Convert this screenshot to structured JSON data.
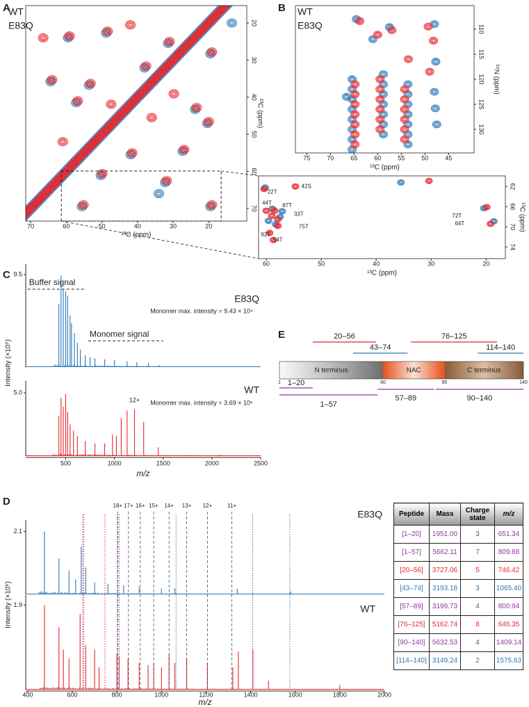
{
  "panel_labels": [
    "A",
    "B",
    "C",
    "D",
    "E"
  ],
  "chart_data": [
    {
      "type": "contour",
      "xlabel": "¹³C (ppm)",
      "ylabel": "¹³C (ppm)",
      "xlim": [
        71.4,
        9.3
      ],
      "ylim": [
        73.4,
        15.3
      ],
      "xticks": [
        70,
        60,
        50,
        40,
        30,
        20
      ],
      "yticks": [
        20,
        30,
        40,
        50,
        60,
        70
      ],
      "diagonal": true,
      "series": [
        {
          "name": "WT",
          "color": "#e8262a",
          "x": [
            59.1,
            48.4,
            37.6,
            31.0,
            53.2,
            64.0,
            56.8,
            47.4,
            23.4,
            19.1,
            26.9,
            41.5,
            49.9,
            31.8,
            19.1,
            55.2,
            29.8,
            20.0,
            66.5,
            42.0,
            61.0,
            36.0
          ],
          "values": [
            23.5,
            22.2,
            31.6,
            25.0,
            36.3,
            35.3,
            41.0,
            41.9,
            42.8,
            27.8,
            54.1,
            55.0,
            60.6,
            62.5,
            69.0,
            69.0,
            39.1,
            46.6,
            24.0,
            20.5,
            52.0,
            45.5
          ]
        },
        {
          "name": "E83Q",
          "color": "#2a78b8",
          "x": [
            59.5,
            48.8,
            38.0,
            31.4,
            53.6,
            64.4,
            57.2,
            23.8,
            19.5,
            27.3,
            41.9,
            50.3,
            32.2,
            19.5,
            55.6,
            20.4,
            13.5,
            34.0
          ],
          "values": [
            24.0,
            22.7,
            32.1,
            25.5,
            36.8,
            35.8,
            41.5,
            43.3,
            28.3,
            54.6,
            55.5,
            61.1,
            63.0,
            69.5,
            69.5,
            47.1,
            20.0,
            66.0
          ]
        }
      ]
    },
    {
      "type": "contour",
      "xlabel": "¹³C (ppm)",
      "ylabel": "¹³C (ppm)",
      "xlim": [
        61.4,
        16.5
      ],
      "ylim": [
        76.3,
        59.9
      ],
      "xticks": [
        60,
        50,
        40,
        30,
        20
      ],
      "yticks": [
        62,
        66,
        70,
        74
      ],
      "series": [
        {
          "name": "WT",
          "color": "#e8262a",
          "x": [
            60.4,
            54.7,
            58.5,
            60.0,
            57.9,
            57.9,
            59.4,
            58.7,
            19.9,
            19.2,
            30.4,
            59.0
          ],
          "values": [
            62.5,
            62.0,
            66.8,
            66.8,
            68.5,
            69.8,
            71.2,
            72.6,
            66.1,
            69.4,
            60.9,
            67.8
          ]
        },
        {
          "name": "E83Q",
          "color": "#2a78b8",
          "x": [
            60.2,
            58.9,
            57.5,
            59.6,
            58.3,
            20.4,
            18.6,
            57.1,
            35.5
          ],
          "values": [
            62.2,
            66.4,
            68.0,
            68.8,
            69.5,
            66.3,
            68.9,
            66.9,
            61.2
          ]
        }
      ],
      "annotations": [
        {
          "text": "22T",
          "x": 58.9,
          "y": 63.1
        },
        {
          "text": "42S",
          "x": 52.7,
          "y": 62.0
        },
        {
          "text": "44T",
          "x": 59.9,
          "y": 65.3
        },
        {
          "text": "87T",
          "x": 56.2,
          "y": 65.8
        },
        {
          "text": "33T",
          "x": 54.1,
          "y": 67.5
        },
        {
          "text": "75T",
          "x": 53.2,
          "y": 70.0
        },
        {
          "text": "92T",
          "x": 60.1,
          "y": 71.6
        },
        {
          "text": "54T",
          "x": 57.9,
          "y": 72.6
        },
        {
          "text": "72T",
          "x": 25.3,
          "y": 67.9
        },
        {
          "text": "64T",
          "x": 24.8,
          "y": 69.4
        }
      ]
    },
    {
      "type": "contour",
      "xlabel": "¹³C (ppm)",
      "ylabel": "¹⁵N (ppm)",
      "xlim": [
        77.4,
        39.6
      ],
      "ylim": [
        134.7,
        105.3
      ],
      "xticks": [
        75,
        70,
        65,
        60,
        55,
        50,
        45
      ],
      "yticks": [
        110,
        115,
        120,
        125,
        130
      ],
      "series": [
        {
          "name": "WT",
          "color": "#e8262a",
          "x": [
            64.8,
            64.8,
            64.8,
            64.8,
            64.8,
            64.8,
            64.8,
            59.5,
            59.5,
            59.5,
            59.5,
            59.5,
            59.5,
            54.3,
            54.3,
            54.3,
            54.3,
            54.3,
            54.3,
            63.8,
            60.0,
            57.0,
            49.3,
            48.2,
            49.0,
            53.5
          ],
          "values": [
            121,
            123,
            125,
            127,
            129,
            131,
            133,
            120,
            122,
            124,
            126,
            128,
            130,
            122,
            124,
            126,
            128,
            130,
            132,
            108.4,
            111.1,
            110.2,
            109.5,
            112.3,
            118.5,
            116.0
          ]
        },
        {
          "name": "E83Q",
          "color": "#2a78b8",
          "x": [
            65.4,
            65.4,
            65.4,
            65.4,
            65.4,
            65.4,
            65.4,
            65.4,
            58.8,
            58.8,
            58.8,
            58.8,
            58.8,
            58.8,
            58.8,
            53.6,
            53.6,
            53.6,
            53.6,
            53.6,
            53.6,
            53.6,
            64.5,
            61.0,
            57.5,
            48.0,
            47.7,
            48.0,
            47.8,
            66.6,
            47.5
          ],
          "values": [
            120,
            122,
            124,
            126,
            128,
            130,
            132,
            134,
            119,
            121,
            123,
            125,
            127,
            129,
            131,
            121,
            123,
            125,
            127,
            129,
            131,
            133,
            108.0,
            112.0,
            109.6,
            109.0,
            116.5,
            122.5,
            125.8,
            123.5,
            129.0
          ]
        }
      ]
    },
    {
      "type": "stick",
      "xlim": [
        90,
        2500
      ],
      "ylim": [
        0,
        10
      ],
      "yticks": [
        9.5
      ],
      "series": [
        {
          "name": "E83Q",
          "color": "#2a78b8",
          "x": [
            430,
            452,
            475,
            500,
            520,
            545,
            560,
            590,
            620,
            650,
            700,
            750,
            800,
            900,
            1000,
            1130,
            1230,
            1350,
            1460
          ],
          "values": [
            6.5,
            9.4,
            8.0,
            7.8,
            7.3,
            5.3,
            4.5,
            3.5,
            2.5,
            1.8,
            1.2,
            1.0,
            0.9,
            0.8,
            0.7,
            0.6,
            0.5,
            0.4,
            0.2
          ]
        }
      ],
      "annotations": [
        {
          "text": "Buffer signal",
          "x": [
            110,
            695
          ],
          "y": 8.0
        },
        {
          "text": "Monomer signal",
          "x": [
            732,
            1502
          ],
          "y": 2.7
        },
        {
          "text": "Monomer max. intensity = 9.43 × 10⁴",
          "x": 1894,
          "y": 5.7
        }
      ]
    },
    {
      "type": "stick",
      "xlabel": "m/z",
      "ylabel": "Intensity (×10⁵)",
      "xlim": [
        90,
        2500
      ],
      "ylim": [
        0,
        5.5
      ],
      "xticks": [
        500,
        1000,
        1500,
        2000,
        2500
      ],
      "yticks": [
        {
          "value": 5,
          "label": "5.0"
        }
      ],
      "series": [
        {
          "name": "WT",
          "color": "#e8262a",
          "x": [
            430,
            452,
            475,
            500,
            520,
            545,
            580,
            620,
            700,
            800,
            900,
            980,
            1020,
            1070,
            1130,
            1206,
            1300,
            1450,
            2080
          ],
          "values": [
            3.2,
            4.6,
            3.9,
            4.9,
            3.5,
            2.5,
            2.0,
            1.6,
            1.2,
            1.0,
            1.0,
            1.7,
            1.6,
            3.0,
            3.6,
            3.7,
            2.7,
            0.7,
            0.1
          ]
        }
      ],
      "annotations": [
        {
          "text": "Monomer max. intensity = 3.69 × 10⁵",
          "x": 1894,
          "y": 4.18
        },
        {
          "text": "12+",
          "x": 1206,
          "y": 4.4,
          "color": "#e8262a"
        }
      ]
    },
    {
      "type": "stick",
      "xlim": [
        391,
        2000
      ],
      "ylim": [
        0,
        2.3
      ],
      "yticks": [
        2.1
      ],
      "series": [
        {
          "name": "E83Q",
          "color": "#2a78b8",
          "x": [
            475,
            540,
            585,
            615,
            640,
            660,
            700,
            760,
            830,
            900,
            1000,
            1060,
            1340,
            1580
          ],
          "values": [
            2.1,
            1.2,
            0.8,
            0.5,
            1.6,
            0.9,
            0.4,
            0.35,
            0.3,
            0.25,
            0.2,
            0.2,
            0.2,
            0.1
          ]
        }
      ],
      "charge_states": [
        {
          "label": "18+",
          "x": 804
        },
        {
          "label": "17+",
          "x": 852
        },
        {
          "label": "16+",
          "x": 905
        },
        {
          "label": "15+",
          "x": 965
        },
        {
          "label": "14+",
          "x": 1034
        },
        {
          "label": "13+",
          "x": 1113
        },
        {
          "label": "12+",
          "x": 1206
        },
        {
          "label": "11+",
          "x": 1316
        }
      ],
      "reference_lines": [
        {
          "x": 646.35,
          "color": "#e8262a"
        },
        {
          "x": 651.34,
          "color": "#8b3a9a"
        },
        {
          "x": 746.42,
          "color": "#e8262a"
        },
        {
          "x": 800.94,
          "color": "#8b3a9a"
        },
        {
          "x": 809.88,
          "color": "#8b3a9a"
        },
        {
          "x": 1065.4,
          "color": "#2a78b8"
        },
        {
          "x": 1409.14,
          "color": "#8b3a9a"
        },
        {
          "x": 1575.63,
          "color": "#2a78b8"
        }
      ]
    },
    {
      "type": "stick",
      "xlabel": "m/z",
      "ylabel": "Intensity (×10⁶)",
      "xlim": [
        391,
        2000
      ],
      "ylim": [
        0,
        2.0
      ],
      "xticks": [
        400,
        600,
        800,
        1000,
        1200,
        1400,
        1600,
        1800,
        2000
      ],
      "yticks": [
        1.9
      ],
      "series": [
        {
          "name": "WT",
          "color": "#e8262a",
          "x": [
            475,
            540,
            560,
            585,
            635,
            660,
            700,
            720,
            800,
            810,
            850,
            900,
            940,
            965,
            1000,
            1034,
            1060,
            1113,
            1206,
            1320,
            1345,
            1410,
            1480,
            1800
          ],
          "values": [
            1.9,
            1.4,
            0.9,
            0.7,
            1.7,
            1.0,
            0.9,
            0.5,
            0.8,
            0.75,
            0.7,
            0.6,
            0.55,
            0.6,
            0.5,
            0.8,
            0.6,
            0.7,
            0.6,
            0.5,
            0.85,
            0.9,
            0.2,
            0.1
          ]
        }
      ]
    }
  ],
  "topology": {
    "regions": [
      {
        "name": "N terminus",
        "start": 1,
        "end": 60
      },
      {
        "name": "NAC",
        "start": 60,
        "end": 95
      },
      {
        "name": "C terminus",
        "start": 95,
        "end": 140
      }
    ],
    "ticks": [
      1,
      60,
      95,
      140
    ],
    "peptides": [
      {
        "label": "20–56",
        "start": 20,
        "end": 56,
        "color": "#e8262a"
      },
      {
        "label": "43–74",
        "start": 43,
        "end": 74,
        "color": "#2a78b8"
      },
      {
        "label": "76–125",
        "start": 76,
        "end": 125,
        "color": "#e8262a"
      },
      {
        "label": "114–140",
        "start": 114,
        "end": 140,
        "color": "#2a78b8"
      },
      {
        "label": "1–20",
        "start": 1,
        "end": 20,
        "color": "#8b3a9a"
      },
      {
        "label": "1–57",
        "start": 1,
        "end": 57,
        "color": "#8b3a9a"
      },
      {
        "label": "57–89",
        "start": 57,
        "end": 89,
        "color": "#8b3a9a"
      },
      {
        "label": "90–140",
        "start": 90,
        "end": 140,
        "color": "#8b3a9a"
      }
    ]
  },
  "table": {
    "header": [
      "Peptide",
      "Mass",
      "Charge state",
      "m/z"
    ],
    "rows": [
      {
        "color": "#8b3a9a",
        "cells": [
          "[1–20]",
          "1951.00",
          "3",
          "651.34"
        ]
      },
      {
        "color": "#8b3a9a",
        "cells": [
          "[1–57]",
          "5662.11",
          "7",
          "809.88"
        ]
      },
      {
        "color": "#e8262a",
        "cells": [
          "[20–56]",
          "3727.06",
          "5",
          "746.42"
        ]
      },
      {
        "color": "#2a78b8",
        "cells": [
          "[43–74]",
          "3193.18",
          "3",
          "1065.40"
        ]
      },
      {
        "color": "#8b3a9a",
        "cells": [
          "[57–89]",
          "3199.73",
          "4",
          "800.94"
        ]
      },
      {
        "color": "#e8262a",
        "cells": [
          "[76–125]",
          "5162.74",
          "8",
          "646.35"
        ]
      },
      {
        "color": "#8b3a9a",
        "cells": [
          "[90–140]",
          "5632.53",
          "4",
          "1409.14"
        ]
      },
      {
        "color": "#2a78b8",
        "cells": [
          "[114–140]",
          "3149.24",
          "2",
          "1575.63"
        ]
      }
    ]
  }
}
